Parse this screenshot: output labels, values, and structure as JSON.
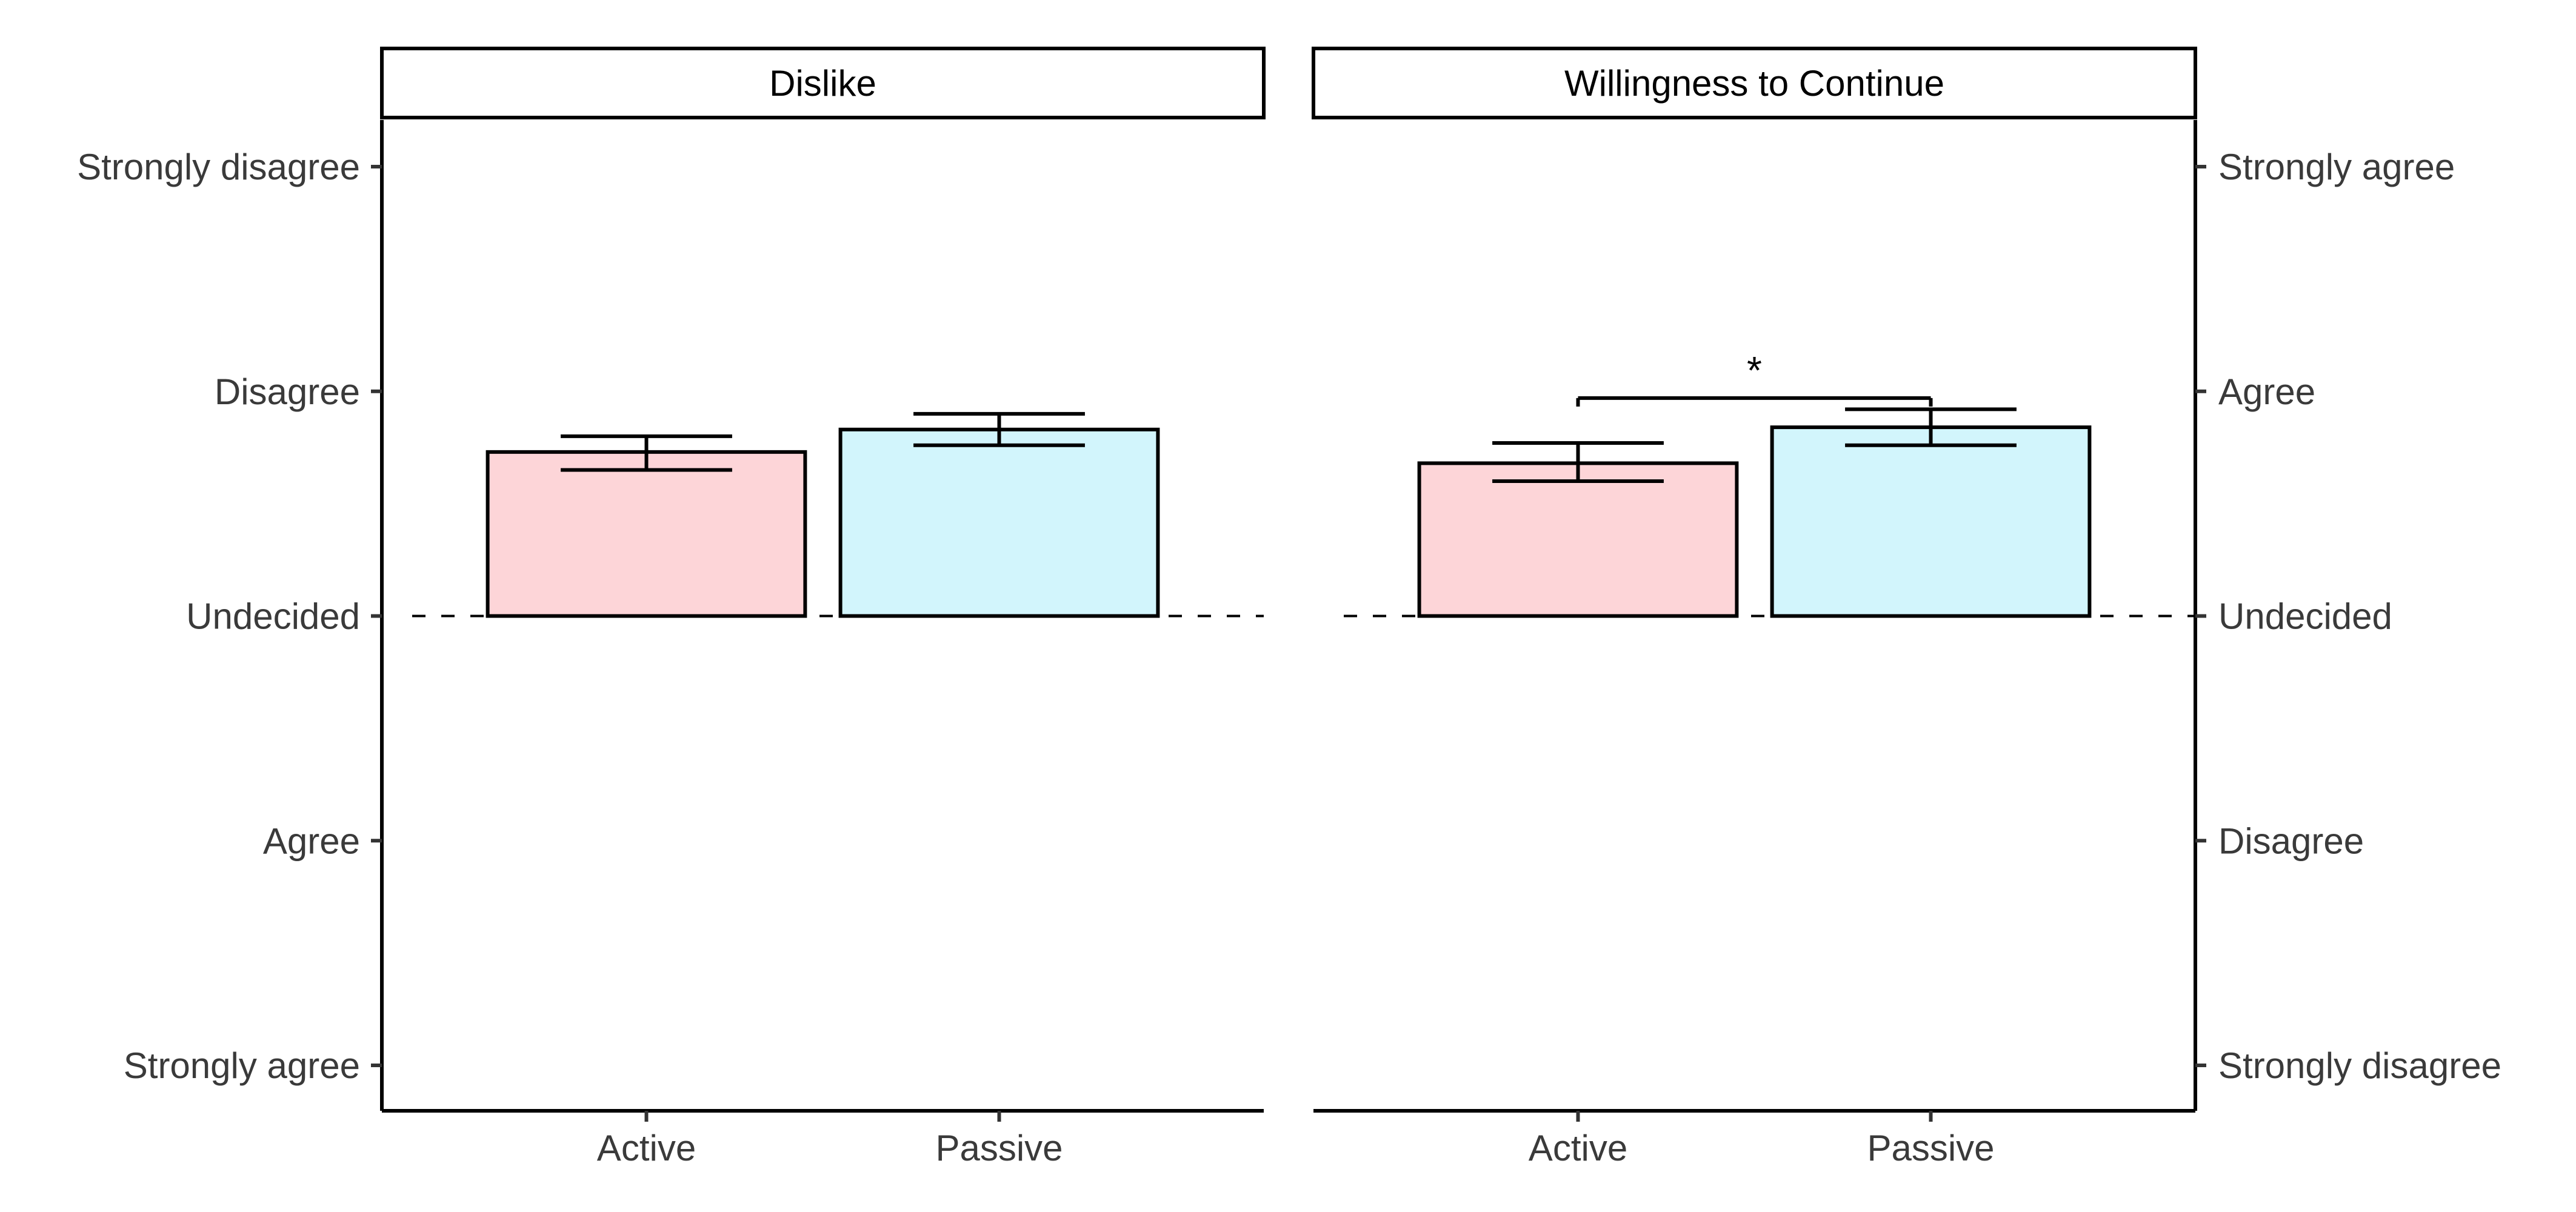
{
  "chart_data": {
    "type": "bar",
    "grid": false,
    "reference_line": {
      "value": 3,
      "style": "dashed"
    },
    "colors": {
      "Active": "#FDD5D8",
      "Passive": "#D2F5FC",
      "outline": "#000000"
    },
    "panels": [
      {
        "strip_title": "Dislike",
        "categories": [
          "Active",
          "Passive"
        ],
        "values": [
          3.73,
          3.83
        ],
        "error_low": [
          3.65,
          3.76
        ],
        "error_high": [
          3.8,
          3.9
        ],
        "ylim": [
          1,
          5
        ],
        "y_ticks": [
          {
            "value": 5,
            "label": "Strongly disagree"
          },
          {
            "value": 4,
            "label": "Disagree"
          },
          {
            "value": 3,
            "label": "Undecided"
          },
          {
            "value": 2,
            "label": "Agree"
          },
          {
            "value": 1,
            "label": "Strongly agree"
          }
        ],
        "axis_side": "left"
      },
      {
        "strip_title": "Willingness to Continue",
        "categories": [
          "Active",
          "Passive"
        ],
        "values": [
          3.68,
          3.84
        ],
        "error_low": [
          3.6,
          3.76
        ],
        "error_high": [
          3.77,
          3.92
        ],
        "ylim": [
          1,
          5
        ],
        "y_ticks": [
          {
            "value": 5,
            "label": "Strongly agree"
          },
          {
            "value": 4,
            "label": "Agree"
          },
          {
            "value": 3,
            "label": "Undecided"
          },
          {
            "value": 2,
            "label": "Disagree"
          },
          {
            "value": 1,
            "label": "Strongly disagree"
          }
        ],
        "axis_side": "right",
        "significance": {
          "from": "Active",
          "to": "Passive",
          "y": 3.97,
          "label": "*"
        }
      }
    ]
  }
}
